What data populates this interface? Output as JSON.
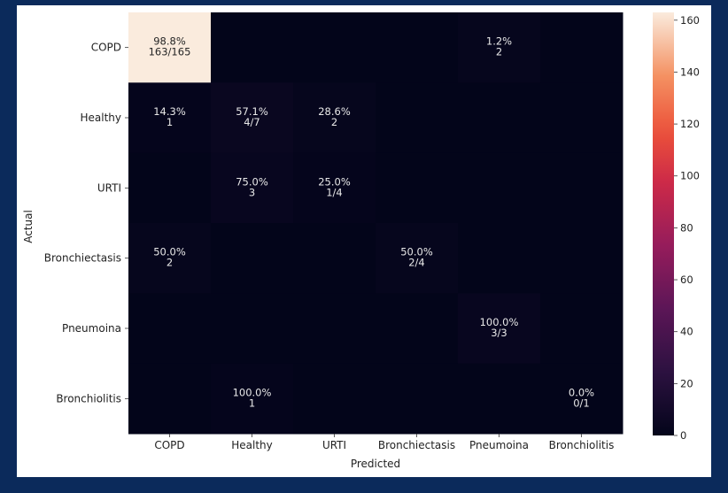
{
  "chart_data": {
    "type": "heatmap",
    "title": "",
    "xlabel": "Predicted",
    "ylabel": "Actual",
    "x_categories": [
      "COPD",
      "Healthy",
      "URTI",
      "Bronchiectasis",
      "Pneumoina",
      "Bronchiolitis"
    ],
    "y_categories": [
      "COPD",
      "Healthy",
      "URTI",
      "Bronchiectasis",
      "Pneumoina",
      "Bronchiolitis"
    ],
    "values": [
      [
        163,
        0,
        0,
        0,
        2,
        0
      ],
      [
        1,
        4,
        2,
        0,
        0,
        0
      ],
      [
        0,
        3,
        1,
        0,
        0,
        0
      ],
      [
        2,
        0,
        0,
        2,
        0,
        0
      ],
      [
        0,
        0,
        0,
        0,
        3,
        0
      ],
      [
        0,
        1,
        0,
        0,
        0,
        0
      ]
    ],
    "annotations": [
      [
        [
          "98.8%",
          "163/165"
        ],
        null,
        null,
        null,
        [
          "1.2%",
          "2"
        ],
        null
      ],
      [
        [
          "14.3%",
          "1"
        ],
        [
          "57.1%",
          "4/7"
        ],
        [
          "28.6%",
          "2"
        ],
        null,
        null,
        null
      ],
      [
        null,
        [
          "75.0%",
          "3"
        ],
        [
          "25.0%",
          "1/4"
        ],
        null,
        null,
        null
      ],
      [
        [
          "50.0%",
          "2"
        ],
        null,
        null,
        [
          "50.0%",
          "2/4"
        ],
        null,
        null
      ],
      [
        null,
        null,
        null,
        null,
        [
          "100.0%",
          "3/3"
        ],
        null
      ],
      [
        null,
        [
          "100.0%",
          "1"
        ],
        null,
        null,
        null,
        [
          "0.0%",
          "0/1"
        ]
      ]
    ],
    "colorbar": {
      "min": 0,
      "max": 163,
      "ticks": [
        0,
        20,
        40,
        60,
        80,
        100,
        120,
        140,
        160
      ],
      "colormap": "rocket"
    }
  }
}
